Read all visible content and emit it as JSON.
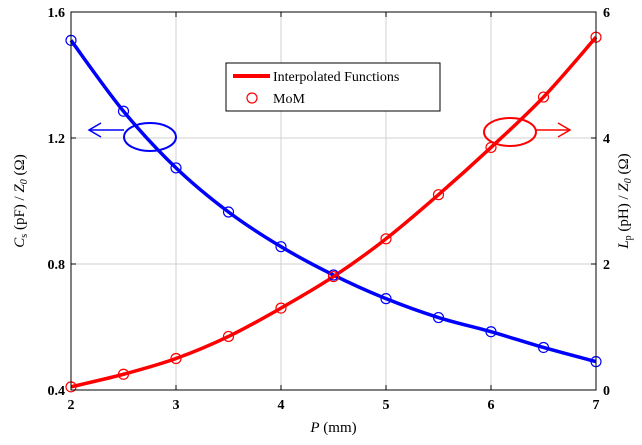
{
  "chart_data": {
    "type": "line",
    "x": [
      2,
      2.5,
      3,
      3.5,
      4,
      4.5,
      5,
      5.5,
      6,
      6.5,
      7
    ],
    "xlim": [
      2,
      7
    ],
    "ylim_left": [
      0.4,
      1.6
    ],
    "ylim_right": [
      0,
      6
    ],
    "xticks": [
      "2",
      "3",
      "4",
      "5",
      "6",
      "7"
    ],
    "yticks_left": [
      "0.4",
      "0.8",
      "1.2",
      "1.6"
    ],
    "yticks_right": [
      "0",
      "2",
      "4",
      "6"
    ],
    "xlabel": {
      "var": "P",
      "unit": " (mm)"
    },
    "ylabel_left": {
      "var": "C",
      "sub": "s",
      "mid": " (pF) / ",
      "var2": "Z",
      "sub2": "0",
      "unit": " (Ω)"
    },
    "ylabel_right": {
      "var": "L",
      "sub": "p",
      "mid": " (pH) / ",
      "var2": "Z",
      "sub2": "0",
      "unit": " (Ω)"
    },
    "grid": true,
    "legend": {
      "position": "top-center",
      "entries": [
        "Interpolated Functions",
        "MoM"
      ]
    },
    "series": [
      {
        "axis": "left",
        "color": "#0000ff",
        "values": [
          1.51,
          1.285,
          1.105,
          0.965,
          0.855,
          0.765,
          0.69,
          0.63,
          0.585,
          0.535,
          0.49
        ]
      },
      {
        "axis": "right",
        "color": "#ff0000",
        "values": [
          0.05,
          0.25,
          0.5,
          0.85,
          1.3,
          1.8,
          2.4,
          3.1,
          3.85,
          4.65,
          5.6
        ]
      }
    ]
  }
}
